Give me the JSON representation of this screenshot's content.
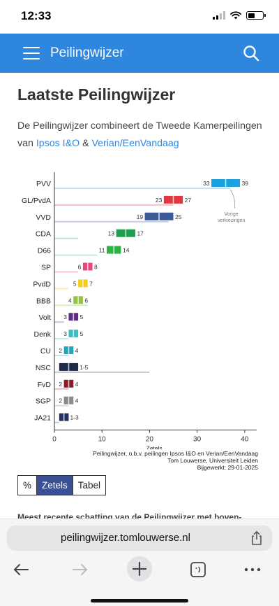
{
  "status": {
    "time": "12:33"
  },
  "appbar": {
    "title": "Peilingwijzer"
  },
  "page": {
    "title": "Laatste Peilingwijzer",
    "intro_prefix": "De Peilingwijzer combineert de Tweede Kamerpeilingen van ",
    "link_ipsos": "Ipsos I&O",
    "amp": " & ",
    "link_verian": "Verian/EenVandaag",
    "teaser": "Meest recente schatting van de Peilingwijzer met boven-"
  },
  "chart_data": {
    "type": "bar",
    "orientation": "horizontal",
    "xlabel": "Zetels",
    "xlim": [
      0,
      42
    ],
    "xticks": [
      0,
      10,
      20,
      30,
      40
    ],
    "annotation": "Vorige verkiezingen",
    "credit_lines": [
      "Peilingwijzer, o.b.v. peilingen Ipsos I&O en Verian/EenVandaag",
      "Tom Louwerse, Universiteit Leiden",
      "Bijgewerkt: 29-01-2025"
    ],
    "parties": [
      {
        "name": "PVV",
        "low": 33,
        "high": 39,
        "range_label": "",
        "low_label": "33",
        "high_label": "39",
        "previous": 37,
        "color": "#1ba3e0",
        "light": "#bfe5f7"
      },
      {
        "name": "GL/PvdA",
        "low": 23,
        "high": 27,
        "range_label": "",
        "low_label": "23",
        "high_label": "27",
        "previous": 25,
        "color": "#e2373f",
        "light": "#f6c3c5"
      },
      {
        "name": "VVD",
        "low": 19,
        "high": 25,
        "range_label": "",
        "low_label": "19",
        "high_label": "25",
        "previous": 24,
        "color": "#3d5a98",
        "light": "#c3cde3"
      },
      {
        "name": "CDA",
        "low": 13,
        "high": 17,
        "range_label": "",
        "low_label": "13",
        "high_label": "17",
        "previous": 5,
        "color": "#1e9e4a",
        "light": "#bfe5cc"
      },
      {
        "name": "D66",
        "low": 11,
        "high": 14,
        "range_label": "",
        "low_label": "11",
        "high_label": "14",
        "previous": 9,
        "color": "#2eb34a",
        "light": "#c9ebcf"
      },
      {
        "name": "SP",
        "low": 6,
        "high": 8,
        "range_label": "",
        "low_label": "6",
        "high_label": "8",
        "previous": 5,
        "color": "#e5487a",
        "light": "#f6c6d5"
      },
      {
        "name": "PvdD",
        "low": 5,
        "high": 7,
        "range_label": "",
        "low_label": "5",
        "high_label": "7",
        "previous": 3,
        "color": "#f2cd1c",
        "light": "#f8ecb0"
      },
      {
        "name": "BBB",
        "low": 4,
        "high": 6,
        "range_label": "",
        "low_label": "4",
        "high_label": "6",
        "previous": 7,
        "color": "#8fc43e",
        "light": "#dcedc1"
      },
      {
        "name": "Volt",
        "low": 3,
        "high": 5,
        "range_label": "",
        "low_label": "3",
        "high_label": "5",
        "previous": 2,
        "color": "#5c2d82",
        "light": "#d2c2de"
      },
      {
        "name": "Denk",
        "low": 3,
        "high": 5,
        "range_label": "",
        "low_label": "3",
        "high_label": "5",
        "previous": 3,
        "color": "#3bbfc2",
        "light": "#c2ebec"
      },
      {
        "name": "CU",
        "low": 2,
        "high": 4,
        "range_label": "",
        "low_label": "2",
        "high_label": "4",
        "previous": 3,
        "color": "#20a6b5",
        "light": "#bfe6ea"
      },
      {
        "name": "NSC",
        "low": 1,
        "high": 5,
        "range_label": "1-5",
        "low_label": "",
        "high_label": "",
        "previous": 20,
        "color": "#1d2a4d",
        "light": "#c4c8d2"
      },
      {
        "name": "FvD",
        "low": 2,
        "high": 4,
        "range_label": "",
        "low_label": "2",
        "high_label": "4",
        "previous": 3,
        "color": "#8c1b2a",
        "light": "#e3c0c5"
      },
      {
        "name": "SGP",
        "low": 2,
        "high": 4,
        "range_label": "",
        "low_label": "2",
        "high_label": "4",
        "previous": 3,
        "color": "#8a8a8a",
        "light": "#dcdcdc"
      },
      {
        "name": "JA21",
        "low": 1,
        "high": 3,
        "range_label": "1-3",
        "low_label": "",
        "high_label": "",
        "previous": 1,
        "color": "#263161",
        "light": "#c5c8d6"
      }
    ]
  },
  "toggle": {
    "items": [
      "%",
      "Zetels",
      "Tabel"
    ],
    "active": "Zetels"
  },
  "browser": {
    "url": "peilingwijzer.tomlouwerse.nl"
  },
  "icons": {
    "menu": "hamburger-icon",
    "search": "search-icon",
    "share": "share-icon",
    "back": "back-arrow-icon",
    "forward": "forward-arrow-icon",
    "new_tab": "plus-icon",
    "tabs": "tabs-icon",
    "more": "more-icon"
  }
}
